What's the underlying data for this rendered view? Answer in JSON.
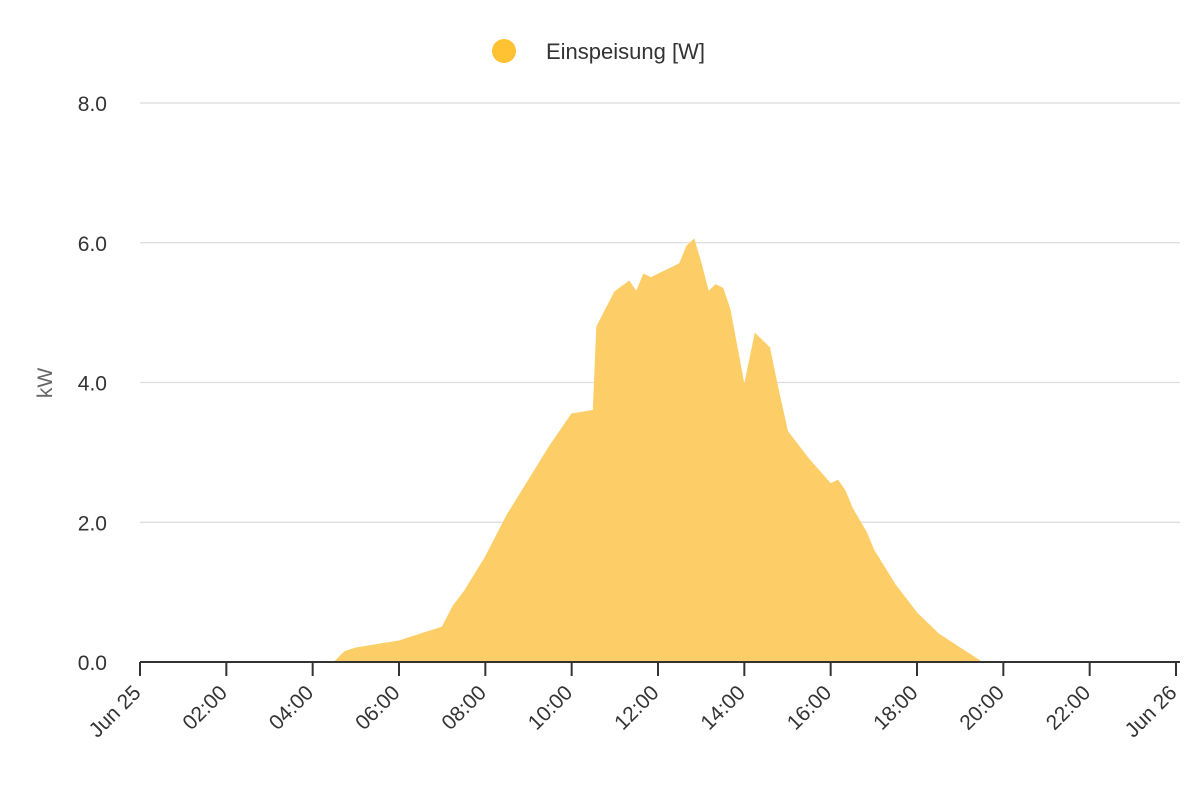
{
  "chart_data": {
    "type": "area",
    "legend": {
      "position": "top-center",
      "entries": [
        {
          "name": "Einspeisung [W]",
          "color": "#FFC233"
        }
      ]
    },
    "series": [
      {
        "name": "Einspeisung [W]",
        "color": "#FFC233",
        "fill_color": "#FDCE67",
        "x": [
          "00:00",
          "04:30",
          "04:45",
          "05:00",
          "05:30",
          "06:00",
          "06:30",
          "07:00",
          "07:15",
          "07:30",
          "08:00",
          "08:30",
          "09:00",
          "09:30",
          "10:00",
          "10:30",
          "10:35",
          "11:00",
          "11:20",
          "11:30",
          "11:40",
          "11:50",
          "12:00",
          "12:20",
          "12:30",
          "12:40",
          "12:50",
          "13:00",
          "13:10",
          "13:20",
          "13:30",
          "13:40",
          "14:00",
          "14:15",
          "14:25",
          "14:35",
          "14:45",
          "15:00",
          "15:30",
          "16:00",
          "16:10",
          "16:20",
          "16:30",
          "16:50",
          "17:00",
          "17:30",
          "18:00",
          "18:30",
          "19:00",
          "19:15",
          "19:30",
          "24:00"
        ],
        "y": [
          0,
          0,
          0.15,
          0.2,
          0.25,
          0.3,
          0.4,
          0.5,
          0.8,
          1.0,
          1.5,
          2.1,
          2.6,
          3.1,
          3.55,
          3.6,
          4.8,
          5.3,
          5.45,
          5.3,
          5.55,
          5.5,
          5.55,
          5.65,
          5.7,
          5.95,
          6.05,
          5.7,
          5.3,
          5.4,
          5.35,
          5.05,
          3.95,
          4.7,
          4.6,
          4.5,
          4.0,
          3.3,
          2.9,
          2.55,
          2.6,
          2.45,
          2.2,
          1.85,
          1.6,
          1.1,
          0.7,
          0.4,
          0.2,
          0.1,
          0,
          0
        ]
      }
    ],
    "ylabel": "kW",
    "xlabel": "",
    "ylim": [
      0,
      8
    ],
    "xlim": [
      "Jun 25 00:00",
      "Jun 26 00:00"
    ],
    "yticks": [
      "0.0",
      "2.0",
      "4.0",
      "6.0",
      "8.0"
    ],
    "xticks": [
      "Jun 25",
      "02:00",
      "04:00",
      "06:00",
      "08:00",
      "10:00",
      "12:00",
      "14:00",
      "16:00",
      "18:00",
      "20:00",
      "22:00",
      "Jun 26"
    ],
    "grid": true
  }
}
